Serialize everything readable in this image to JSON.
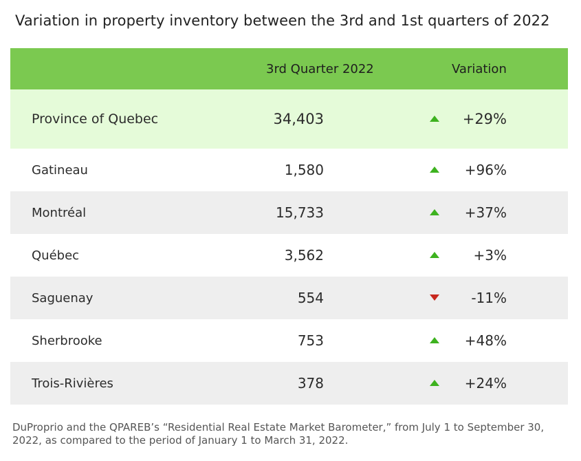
{
  "chart_data": {
    "type": "table",
    "title": "Variation in property inventory between the 3rd and 1st quarters of 2022",
    "columns": [
      "",
      "3rd Quarter 2022",
      "Variation"
    ],
    "province": {
      "name": "Province of Quebec",
      "value": "34,403",
      "variation": "+29%",
      "direction": "up"
    },
    "rows": [
      {
        "name": "Gatineau",
        "value": "1,580",
        "variation": "+96%",
        "direction": "up"
      },
      {
        "name": "Montréal",
        "value": "15,733",
        "variation": "+37%",
        "direction": "up"
      },
      {
        "name": "Québec",
        "value": "3,562",
        "variation": "+3%",
        "direction": "up"
      },
      {
        "name": "Saguenay",
        "value": "554",
        "variation": "-11%",
        "direction": "down"
      },
      {
        "name": "Sherbrooke",
        "value": "753",
        "variation": "+48%",
        "direction": "up"
      },
      {
        "name": "Trois-Rivières",
        "value": "378",
        "variation": "+24%",
        "direction": "up"
      }
    ],
    "source_note": "DuProprio and the QPAREB’s “Residential Real Estate Market Barometer,” from July 1 to September 30, 2022, as compared to the period of January 1 to March 31, 2022."
  },
  "colors": {
    "header_green": "#7bc950",
    "province_row": "#e5fbd9",
    "shaded_row": "#eeeeee",
    "up_arrow": "#3db21f",
    "down_arrow": "#c8281e"
  }
}
